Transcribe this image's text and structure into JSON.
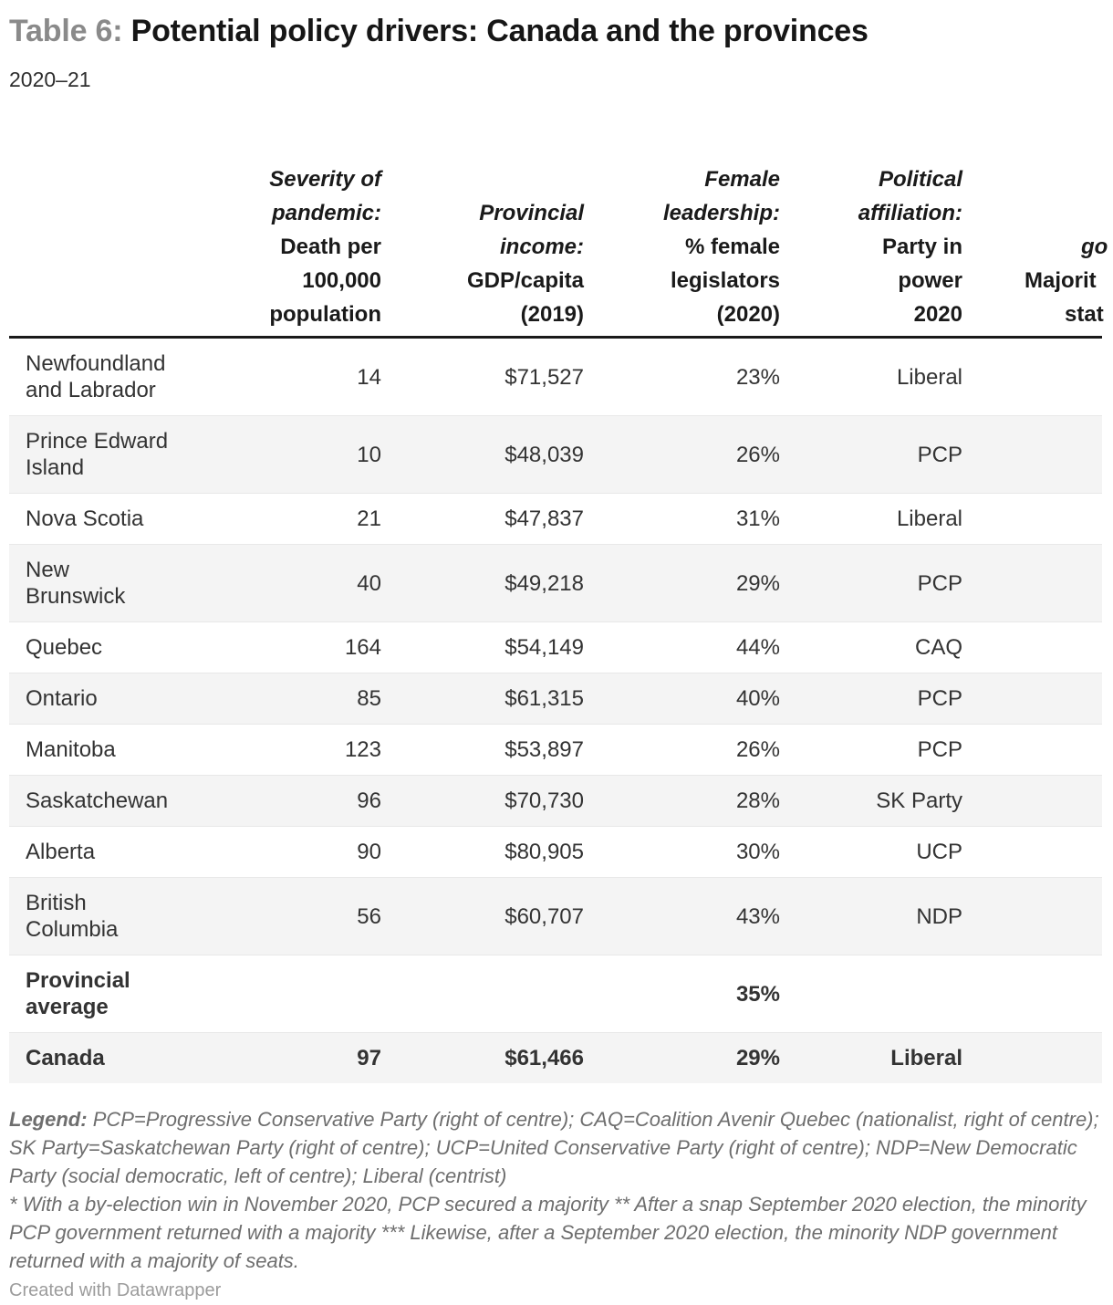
{
  "page": {
    "title_prefix": "Table 6:",
    "title_main": "Potential policy drivers: Canada and the provinces",
    "subtitle": "2020–21",
    "attribution": "Created with Datawrapper"
  },
  "colors": {
    "title_prefix": "#8a8a8a",
    "title_main": "#161616",
    "subtitle_text": "#2e2e2e",
    "header_text": "#1a1a1a",
    "header_rule": "#1a1a1a",
    "body_text": "#333333",
    "stripe": "#f4f4f4",
    "row_border": "#e8e8e8",
    "legend_text": "#6e6e6e",
    "attribution_text": "#9c9c9c"
  },
  "table": {
    "headers": [
      {
        "italic_lines": [],
        "plain_lines": []
      },
      {
        "italic_lines": [
          "Severity of",
          "pandemic:"
        ],
        "plain_lines": [
          "Death per",
          "100,000",
          "population"
        ]
      },
      {
        "italic_lines": [
          "Provincial",
          "income:"
        ],
        "plain_lines": [
          "GDP/capita",
          "(2019)"
        ]
      },
      {
        "italic_lines": [
          "Female",
          "leadership:"
        ],
        "plain_lines": [
          "% female",
          "legislators",
          "(2020)"
        ]
      },
      {
        "italic_lines": [
          "Political",
          "affiliation:"
        ],
        "plain_lines": [
          "Party in",
          "power",
          "2020"
        ]
      },
      {
        "clipped_fragments": [
          {
            "text": "go",
            "italic": true
          },
          {
            "text": "Majorit",
            "italic": false
          },
          {
            "text": "stat",
            "italic": false
          }
        ]
      }
    ],
    "rows": [
      {
        "name_lines": [
          "Newfoundland",
          "and Labrador"
        ],
        "deaths": "14",
        "gdp": "$71,527",
        "female": "23%",
        "party": "Liberal",
        "bold": false
      },
      {
        "name_lines": [
          "Prince Edward",
          "Island"
        ],
        "deaths": "10",
        "gdp": "$48,039",
        "female": "26%",
        "party": "PCP",
        "bold": false
      },
      {
        "name_lines": [
          "Nova Scotia"
        ],
        "deaths": "21",
        "gdp": "$47,837",
        "female": "31%",
        "party": "Liberal",
        "bold": false
      },
      {
        "name_lines": [
          "New",
          "Brunswick"
        ],
        "deaths": "40",
        "gdp": "$49,218",
        "female": "29%",
        "party": "PCP",
        "bold": false
      },
      {
        "name_lines": [
          "Quebec"
        ],
        "deaths": "164",
        "gdp": "$54,149",
        "female": "44%",
        "party": "CAQ",
        "bold": false
      },
      {
        "name_lines": [
          "Ontario"
        ],
        "deaths": "85",
        "gdp": "$61,315",
        "female": "40%",
        "party": "PCP",
        "bold": false
      },
      {
        "name_lines": [
          "Manitoba"
        ],
        "deaths": "123",
        "gdp": "$53,897",
        "female": "26%",
        "party": "PCP",
        "bold": false
      },
      {
        "name_lines": [
          "Saskatchewan"
        ],
        "deaths": "96",
        "gdp": "$70,730",
        "female": "28%",
        "party": "SK Party",
        "bold": false
      },
      {
        "name_lines": [
          "Alberta"
        ],
        "deaths": "90",
        "gdp": "$80,905",
        "female": "30%",
        "party": "UCP",
        "bold": false
      },
      {
        "name_lines": [
          "British",
          "Columbia"
        ],
        "deaths": "56",
        "gdp": "$60,707",
        "female": "43%",
        "party": "NDP",
        "bold": false
      },
      {
        "name_lines": [
          "Provincial",
          "average"
        ],
        "deaths": "",
        "gdp": "",
        "female": "35%",
        "party": "",
        "bold": true
      },
      {
        "name_lines": [
          "Canada"
        ],
        "deaths": "97",
        "gdp": "$61,466",
        "female": "29%",
        "party": "Liberal",
        "bold": true
      }
    ]
  },
  "legend": {
    "label": "Legend:",
    "text": "PCP=Progressive Conservative Party (right of centre); CAQ=Coalition Avenir Quebec (nationalist, right of centre); SK Party=Saskatchewan Party (right of centre); UCP=United Conservative Party (right of centre); NDP=New Democratic Party (social democratic, left of centre); Liberal (centrist)"
  },
  "footnote": "* With a by-election win in November 2020, PCP secured a majority ** After a snap September 2020 election, the minority PCP government returned with a majority *** Likewise, after a September 2020 election, the minority NDP government returned with a majority of seats.",
  "chart_data": {
    "type": "table",
    "title": "Table 6: Potential policy drivers: Canada and the provinces",
    "subtitle": "2020–21",
    "columns": [
      "",
      "Severity of pandemic: Death per 100,000 population",
      "Provincial income: GDP/capita (2019)",
      "Female leadership: % female legislators (2020)",
      "Political affiliation: Party in power 2020",
      "clipped column (visible fragments: go… / Majorit… / stat…)"
    ],
    "rows": [
      [
        "Newfoundland and Labrador",
        14,
        "$71,527",
        "23%",
        "Liberal"
      ],
      [
        "Prince Edward Island",
        10,
        "$48,039",
        "26%",
        "PCP"
      ],
      [
        "Nova Scotia",
        21,
        "$47,837",
        "31%",
        "Liberal"
      ],
      [
        "New Brunswick",
        40,
        "$49,218",
        "29%",
        "PCP"
      ],
      [
        "Quebec",
        164,
        "$54,149",
        "44%",
        "CAQ"
      ],
      [
        "Ontario",
        85,
        "$61,315",
        "40%",
        "PCP"
      ],
      [
        "Manitoba",
        123,
        "$53,897",
        "26%",
        "PCP"
      ],
      [
        "Saskatchewan",
        96,
        "$70,730",
        "28%",
        "SK Party"
      ],
      [
        "Alberta",
        90,
        "$80,905",
        "30%",
        "UCP"
      ],
      [
        "British Columbia",
        56,
        "$60,707",
        "43%",
        "NDP"
      ],
      [
        "Provincial average",
        null,
        null,
        "35%",
        null
      ],
      [
        "Canada",
        97,
        "$61,466",
        "29%",
        "Liberal"
      ]
    ]
  }
}
